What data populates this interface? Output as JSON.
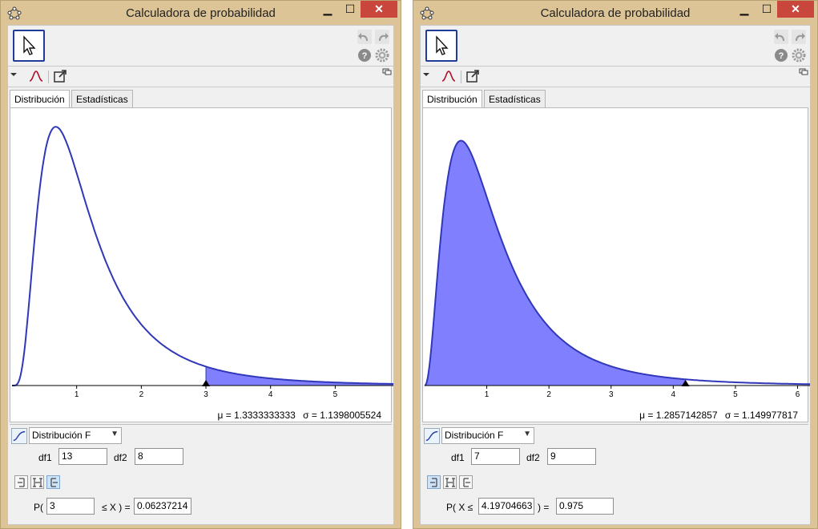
{
  "colors": {
    "curve": "#3037b8",
    "fill": "#8080ff",
    "title_bar": "#dcc497",
    "close": "#c9463d"
  },
  "windows": [
    {
      "title": "Calculadora de probabilidad",
      "tabs": [
        "Distribución",
        "Estadísticas"
      ],
      "mean": "μ = 1.3333333333",
      "sd": "σ = 1.1398005524",
      "distribution": "Distribución F",
      "param1_label": "df1",
      "param1_value": "13",
      "param2_label": "df2",
      "param2_value": "8",
      "selected_interval": "right",
      "prob_prefix": "P(",
      "bound_value": "3",
      "prob_mid": "≤ X ) =",
      "result_value": "0.06237214",
      "chart_data": {
        "type": "area",
        "function": "F density",
        "df1": 13,
        "df2": 8,
        "shaded": "right",
        "marker": 3,
        "xlim": [
          0,
          5.9
        ],
        "ylim": [
          0,
          0.78
        ],
        "xticks": [
          "1",
          "2",
          "3",
          "4",
          "5"
        ]
      }
    },
    {
      "title": "Calculadora de probabilidad",
      "tabs": [
        "Distribución",
        "Estadísticas"
      ],
      "mean": "μ = 1.2857142857",
      "sd": "σ = 1.149977817",
      "distribution": "Distribución F",
      "param1_label": "df1",
      "param1_value": "7",
      "param2_label": "df2",
      "param2_value": "9",
      "selected_interval": "left",
      "prob_prefix": "P( X ≤",
      "bound_value": "4.19704663",
      "prob_mid": ") =",
      "result_value": "0.975",
      "chart_data": {
        "type": "area",
        "function": "F density",
        "df1": 7,
        "df2": 9,
        "shaded": "left",
        "marker": 4.19704663,
        "xlim": [
          0,
          6.2
        ],
        "ylim": [
          0,
          0.78
        ],
        "xticks": [
          "1",
          "2",
          "3",
          "4",
          "5",
          "6"
        ]
      }
    }
  ]
}
